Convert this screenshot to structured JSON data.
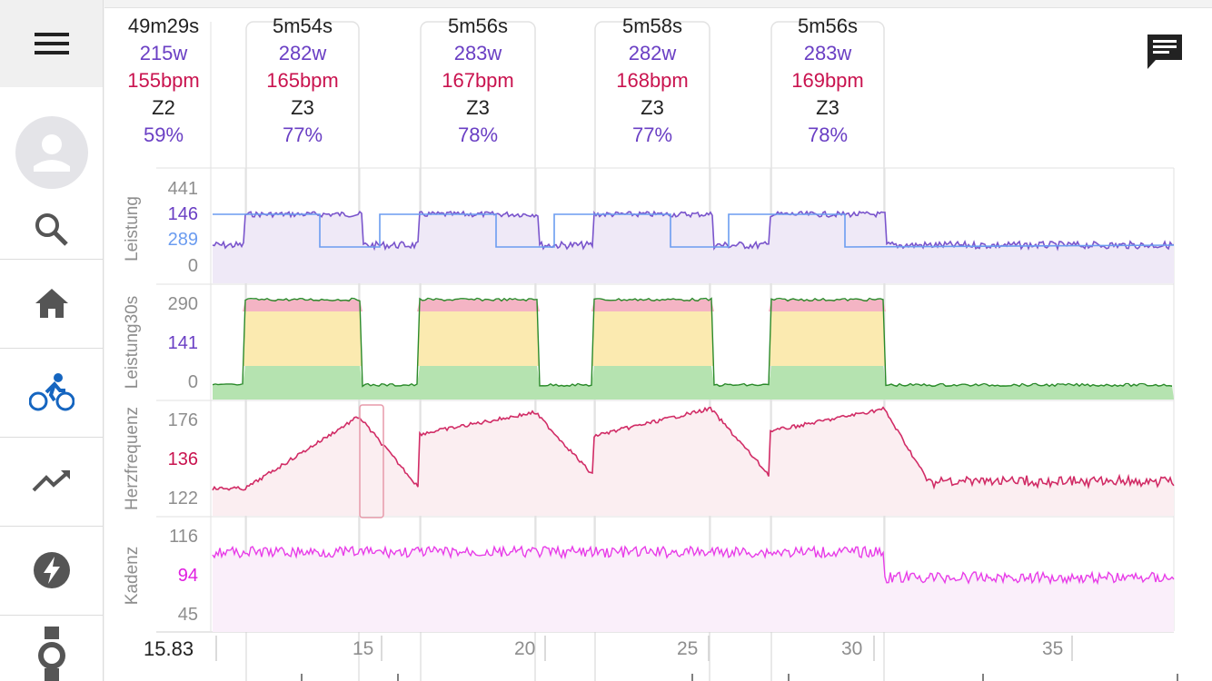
{
  "sidebar": {
    "items": [
      {
        "name": "menu-icon"
      },
      {
        "name": "avatar"
      },
      {
        "name": "search-icon"
      },
      {
        "name": "home-icon"
      },
      {
        "name": "bike-icon",
        "active": true,
        "color": "#1565c0"
      },
      {
        "name": "trending-icon"
      },
      {
        "name": "bolt-icon"
      },
      {
        "name": "watch-icon"
      }
    ]
  },
  "header": {
    "total": {
      "duration": "49m29s",
      "power": "215w",
      "hr": "155bpm",
      "zone": "Z2",
      "pct": "59%"
    },
    "laps": [
      {
        "duration": "5m54s",
        "power": "282w",
        "hr": "165bpm",
        "zone": "Z3",
        "pct": "77%"
      },
      {
        "duration": "5m56s",
        "power": "283w",
        "hr": "167bpm",
        "zone": "Z3",
        "pct": "78%"
      },
      {
        "duration": "5m58s",
        "power": "282w",
        "hr": "168bpm",
        "zone": "Z3",
        "pct": "77%"
      },
      {
        "duration": "5m56s",
        "power": "283w",
        "hr": "169bpm",
        "zone": "Z3",
        "pct": "78%"
      }
    ]
  },
  "comment_icon": "comment-icon",
  "rows": [
    {
      "label": "Leistung",
      "ticks": [
        {
          "v": "441",
          "color": "#8e8e8e"
        },
        {
          "v": "146",
          "color": "#6a3fc4"
        },
        {
          "v": "289",
          "color": "#6b9cf0"
        },
        {
          "v": "0",
          "color": "#8e8e8e"
        }
      ]
    },
    {
      "label": "Leistung30s",
      "ticks": [
        {
          "v": "290",
          "color": "#8e8e8e"
        },
        {
          "v": "141",
          "color": "#6a3fc4"
        },
        {
          "v": "0",
          "color": "#8e8e8e"
        }
      ]
    },
    {
      "label": "Herzfrequenz",
      "ticks": [
        {
          "v": "176",
          "color": "#8e8e8e"
        },
        {
          "v": "136",
          "color": "#c9134f"
        },
        {
          "v": "122",
          "color": "#8e8e8e"
        }
      ]
    },
    {
      "label": "Kadenz",
      "ticks": [
        {
          "v": "116",
          "color": "#8e8e8e"
        },
        {
          "v": "94",
          "color": "#e020e0"
        },
        {
          "v": "45",
          "color": "#8e8e8e"
        }
      ]
    }
  ],
  "xaxis": {
    "cursor": "15.83",
    "ticks": [
      "15",
      "20",
      "25",
      "30",
      "35"
    ]
  },
  "colors": {
    "power": "#7a55cc",
    "power_avg": "#6b9cf0",
    "hr": "#d12c66",
    "cadence": "#e83de8",
    "zone_green": "#b5e3b0",
    "zone_yellow": "#fbeab0",
    "zone_red": "#f4b4c4"
  }
}
